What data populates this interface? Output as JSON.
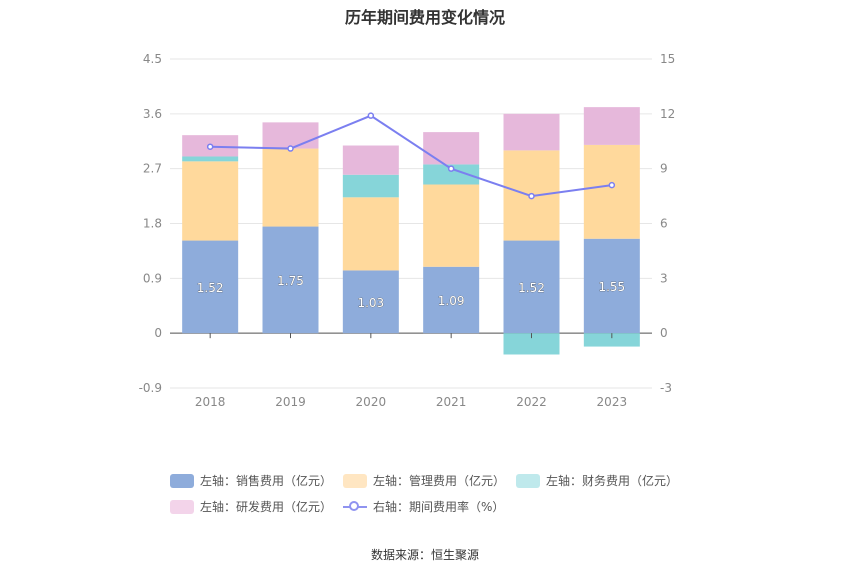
{
  "title": "历年期间费用变化情况",
  "source": "数据来源：恒生聚源",
  "colors": {
    "sales": "#8eacdb",
    "admin": "#ffd99c",
    "finance": "#86d5d9",
    "rnd": "#e6b8db",
    "rate": "#7b7ff0",
    "legend_admin": "#ffe6c2",
    "legend_finance": "#bfe9ec",
    "legend_rnd": "#f3d4ea"
  },
  "legend": [
    {
      "key": "sales",
      "label": "左轴：销售费用（亿元）"
    },
    {
      "key": "admin",
      "label": "左轴：管理费用（亿元）"
    },
    {
      "key": "finance",
      "label": "左轴：财务费用（亿元）"
    },
    {
      "key": "rnd",
      "label": "左轴：研发费用（亿元）"
    },
    {
      "key": "rate",
      "label": "右轴：期间费用率（%）"
    }
  ],
  "chart_data": {
    "type": "bar",
    "stacked": true,
    "categories": [
      "2018",
      "2019",
      "2020",
      "2021",
      "2022",
      "2023"
    ],
    "series": [
      {
        "name": "左轴：销售费用（亿元）",
        "axis": "left",
        "values": [
          1.52,
          1.75,
          1.03,
          1.09,
          1.52,
          1.55
        ],
        "labels": [
          "1.52",
          "1.75",
          "1.03",
          "1.09",
          "1.52",
          "1.55"
        ]
      },
      {
        "name": "左轴：管理费用（亿元）",
        "axis": "left",
        "values": [
          1.3,
          1.28,
          1.2,
          1.35,
          1.48,
          1.54
        ]
      },
      {
        "name": "左轴：财务费用（亿元）",
        "axis": "left",
        "values": [
          0.08,
          0.0,
          0.37,
          0.33,
          -0.35,
          -0.22
        ]
      },
      {
        "name": "左轴：研发费用（亿元）",
        "axis": "left",
        "values": [
          0.35,
          0.43,
          0.48,
          0.53,
          0.6,
          0.62
        ]
      },
      {
        "name": "右轴：期间费用率（%）",
        "axis": "right",
        "type": "line",
        "values": [
          10.2,
          10.1,
          11.9,
          9.0,
          7.5,
          8.1
        ]
      }
    ],
    "y_left": {
      "ylim": [
        -0.9,
        4.5
      ],
      "ticks": [
        "-0.9",
        "0",
        "0.9",
        "1.8",
        "2.7",
        "3.6",
        "4.5"
      ]
    },
    "y_right": {
      "ylim": [
        -3,
        15
      ],
      "ticks": [
        "-3",
        "0",
        "3",
        "6",
        "9",
        "12",
        "15"
      ]
    },
    "grid": true,
    "legend_position": "bottom"
  }
}
